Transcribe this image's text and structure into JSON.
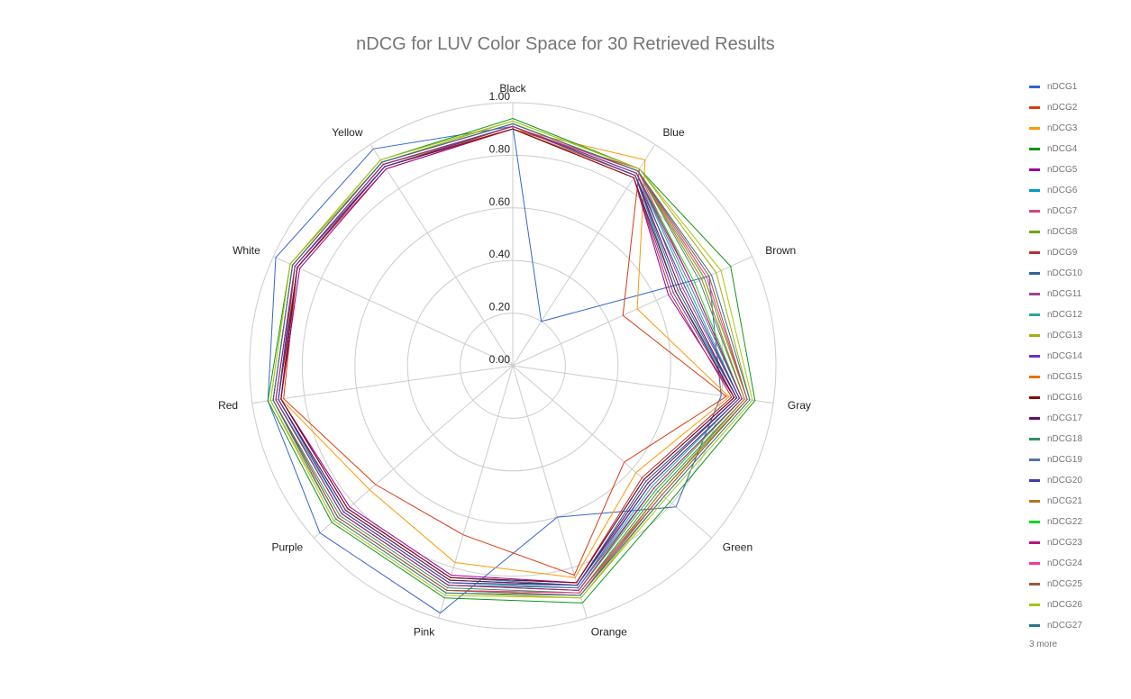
{
  "chart_data": {
    "type": "radar",
    "title": "nDCG for LUV Color Space for 30 Retrieved Results",
    "axes": [
      "Black",
      "Blue",
      "Brown",
      "Gray",
      "Green",
      "Orange",
      "Pink",
      "Purple",
      "Red",
      "White",
      "Yellow"
    ],
    "radial_range": [
      0,
      1
    ],
    "radial_ticks": [
      "0.00",
      "0.20",
      "0.40",
      "0.60",
      "0.80",
      "1.00"
    ],
    "grid": true,
    "legend_position": "right",
    "legend_more": "3 more",
    "series": [
      {
        "name": "nDCG1",
        "color": "#3366cc",
        "values": [
          0.91,
          0.2,
          0.82,
          0.8,
          0.82,
          0.6,
          0.98,
          0.97,
          0.94,
          0.99,
          0.98
        ]
      },
      {
        "name": "nDCG2",
        "color": "#dc3912",
        "values": [
          0.9,
          0.89,
          0.46,
          0.82,
          0.56,
          0.83,
          0.67,
          0.69,
          0.88,
          0.9,
          0.89
        ]
      },
      {
        "name": "nDCG3",
        "color": "#ff9900",
        "values": [
          0.9,
          0.93,
          0.52,
          0.83,
          0.62,
          0.84,
          0.78,
          0.72,
          0.89,
          0.91,
          0.91
        ]
      },
      {
        "name": "nDCG4",
        "color": "#109618",
        "values": [
          0.94,
          0.89,
          0.91,
          0.93,
          0.79,
          0.94,
          0.92,
          0.91,
          0.94,
          0.93,
          0.93
        ]
      },
      {
        "name": "nDCG5",
        "color": "#990099",
        "values": [
          0.9,
          0.85,
          0.65,
          0.85,
          0.66,
          0.86,
          0.83,
          0.82,
          0.89,
          0.89,
          0.89
        ]
      },
      {
        "name": "nDCG6",
        "color": "#0099c6",
        "values": [
          0.9,
          0.86,
          0.68,
          0.86,
          0.67,
          0.87,
          0.84,
          0.83,
          0.89,
          0.9,
          0.9
        ]
      },
      {
        "name": "nDCG7",
        "color": "#dd4477",
        "values": [
          0.91,
          0.88,
          0.75,
          0.88,
          0.72,
          0.89,
          0.87,
          0.86,
          0.91,
          0.91,
          0.91
        ]
      },
      {
        "name": "nDCG8",
        "color": "#66aa00",
        "values": [
          0.92,
          0.88,
          0.8,
          0.9,
          0.74,
          0.91,
          0.89,
          0.88,
          0.92,
          0.92,
          0.92
        ]
      },
      {
        "name": "nDCG9",
        "color": "#b82e2e",
        "values": [
          0.9,
          0.85,
          0.66,
          0.84,
          0.65,
          0.86,
          0.84,
          0.83,
          0.89,
          0.9,
          0.9
        ]
      },
      {
        "name": "nDCG10",
        "color": "#316395",
        "values": [
          0.9,
          0.86,
          0.69,
          0.86,
          0.67,
          0.87,
          0.85,
          0.84,
          0.9,
          0.9,
          0.9
        ]
      },
      {
        "name": "nDCG11",
        "color": "#994499",
        "values": [
          0.91,
          0.87,
          0.71,
          0.87,
          0.69,
          0.88,
          0.86,
          0.85,
          0.9,
          0.91,
          0.91
        ]
      },
      {
        "name": "nDCG12",
        "color": "#22aa99",
        "values": [
          0.91,
          0.87,
          0.73,
          0.87,
          0.7,
          0.88,
          0.86,
          0.85,
          0.91,
          0.91,
          0.91
        ]
      },
      {
        "name": "nDCG13",
        "color": "#aaaa11",
        "values": [
          0.93,
          0.89,
          0.85,
          0.91,
          0.76,
          0.92,
          0.9,
          0.89,
          0.93,
          0.93,
          0.92
        ]
      },
      {
        "name": "nDCG14",
        "color": "#6633cc",
        "values": [
          0.9,
          0.85,
          0.67,
          0.85,
          0.66,
          0.86,
          0.84,
          0.83,
          0.89,
          0.9,
          0.9
        ]
      },
      {
        "name": "nDCG15",
        "color": "#e67300",
        "values": [
          0.9,
          0.86,
          0.7,
          0.86,
          0.68,
          0.87,
          0.85,
          0.84,
          0.9,
          0.9,
          0.9
        ]
      },
      {
        "name": "nDCG16",
        "color": "#8b0707",
        "values": [
          0.9,
          0.85,
          0.68,
          0.85,
          0.66,
          0.86,
          0.84,
          0.83,
          0.89,
          0.9,
          0.9
        ]
      },
      {
        "name": "nDCG17",
        "color": "#651067",
        "values": [
          0.91,
          0.86,
          0.7,
          0.86,
          0.68,
          0.87,
          0.85,
          0.84,
          0.9,
          0.9,
          0.9
        ]
      },
      {
        "name": "nDCG18",
        "color": "#329262",
        "values": [
          0.92,
          0.88,
          0.78,
          0.89,
          0.73,
          0.9,
          0.88,
          0.87,
          0.92,
          0.92,
          0.92
        ]
      },
      {
        "name": "nDCG19",
        "color": "#5574a6",
        "values": [
          0.91,
          0.87,
          0.74,
          0.88,
          0.71,
          0.88,
          0.87,
          0.86,
          0.91,
          0.91,
          0.91
        ]
      },
      {
        "name": "nDCG20",
        "color": "#3b3eac",
        "values": [
          0.91,
          0.86,
          0.72,
          0.87,
          0.69,
          0.87,
          0.86,
          0.85,
          0.9,
          0.91,
          0.9
        ]
      },
      {
        "name": "nDCG21",
        "color": "#b77322",
        "values": [
          0.92,
          0.88,
          0.79,
          0.89,
          0.74,
          0.9,
          0.89,
          0.88,
          0.92,
          0.92,
          0.92
        ]
      },
      {
        "name": "nDCG22",
        "color": "#16d620",
        "values": [
          0.91,
          0.87,
          0.76,
          0.88,
          0.72,
          0.89,
          0.87,
          0.86,
          0.91,
          0.91,
          0.91
        ]
      },
      {
        "name": "nDCG23",
        "color": "#b91383",
        "values": [
          0.91,
          0.87,
          0.75,
          0.88,
          0.71,
          0.89,
          0.87,
          0.86,
          0.91,
          0.91,
          0.91
        ]
      },
      {
        "name": "nDCG24",
        "color": "#f4359e",
        "values": [
          0.92,
          0.88,
          0.81,
          0.9,
          0.75,
          0.9,
          0.89,
          0.88,
          0.92,
          0.92,
          0.92
        ]
      },
      {
        "name": "nDCG25",
        "color": "#9c5935",
        "values": [
          0.92,
          0.88,
          0.82,
          0.9,
          0.75,
          0.91,
          0.89,
          0.88,
          0.92,
          0.92,
          0.92
        ]
      },
      {
        "name": "nDCG26",
        "color": "#a9c413",
        "values": [
          0.93,
          0.89,
          0.87,
          0.92,
          0.77,
          0.92,
          0.91,
          0.9,
          0.93,
          0.93,
          0.93
        ]
      },
      {
        "name": "nDCG27",
        "color": "#2a778d",
        "values": [
          0.92,
          0.88,
          0.83,
          0.91,
          0.76,
          0.91,
          0.9,
          0.89,
          0.92,
          0.92,
          0.92
        ]
      }
    ]
  }
}
